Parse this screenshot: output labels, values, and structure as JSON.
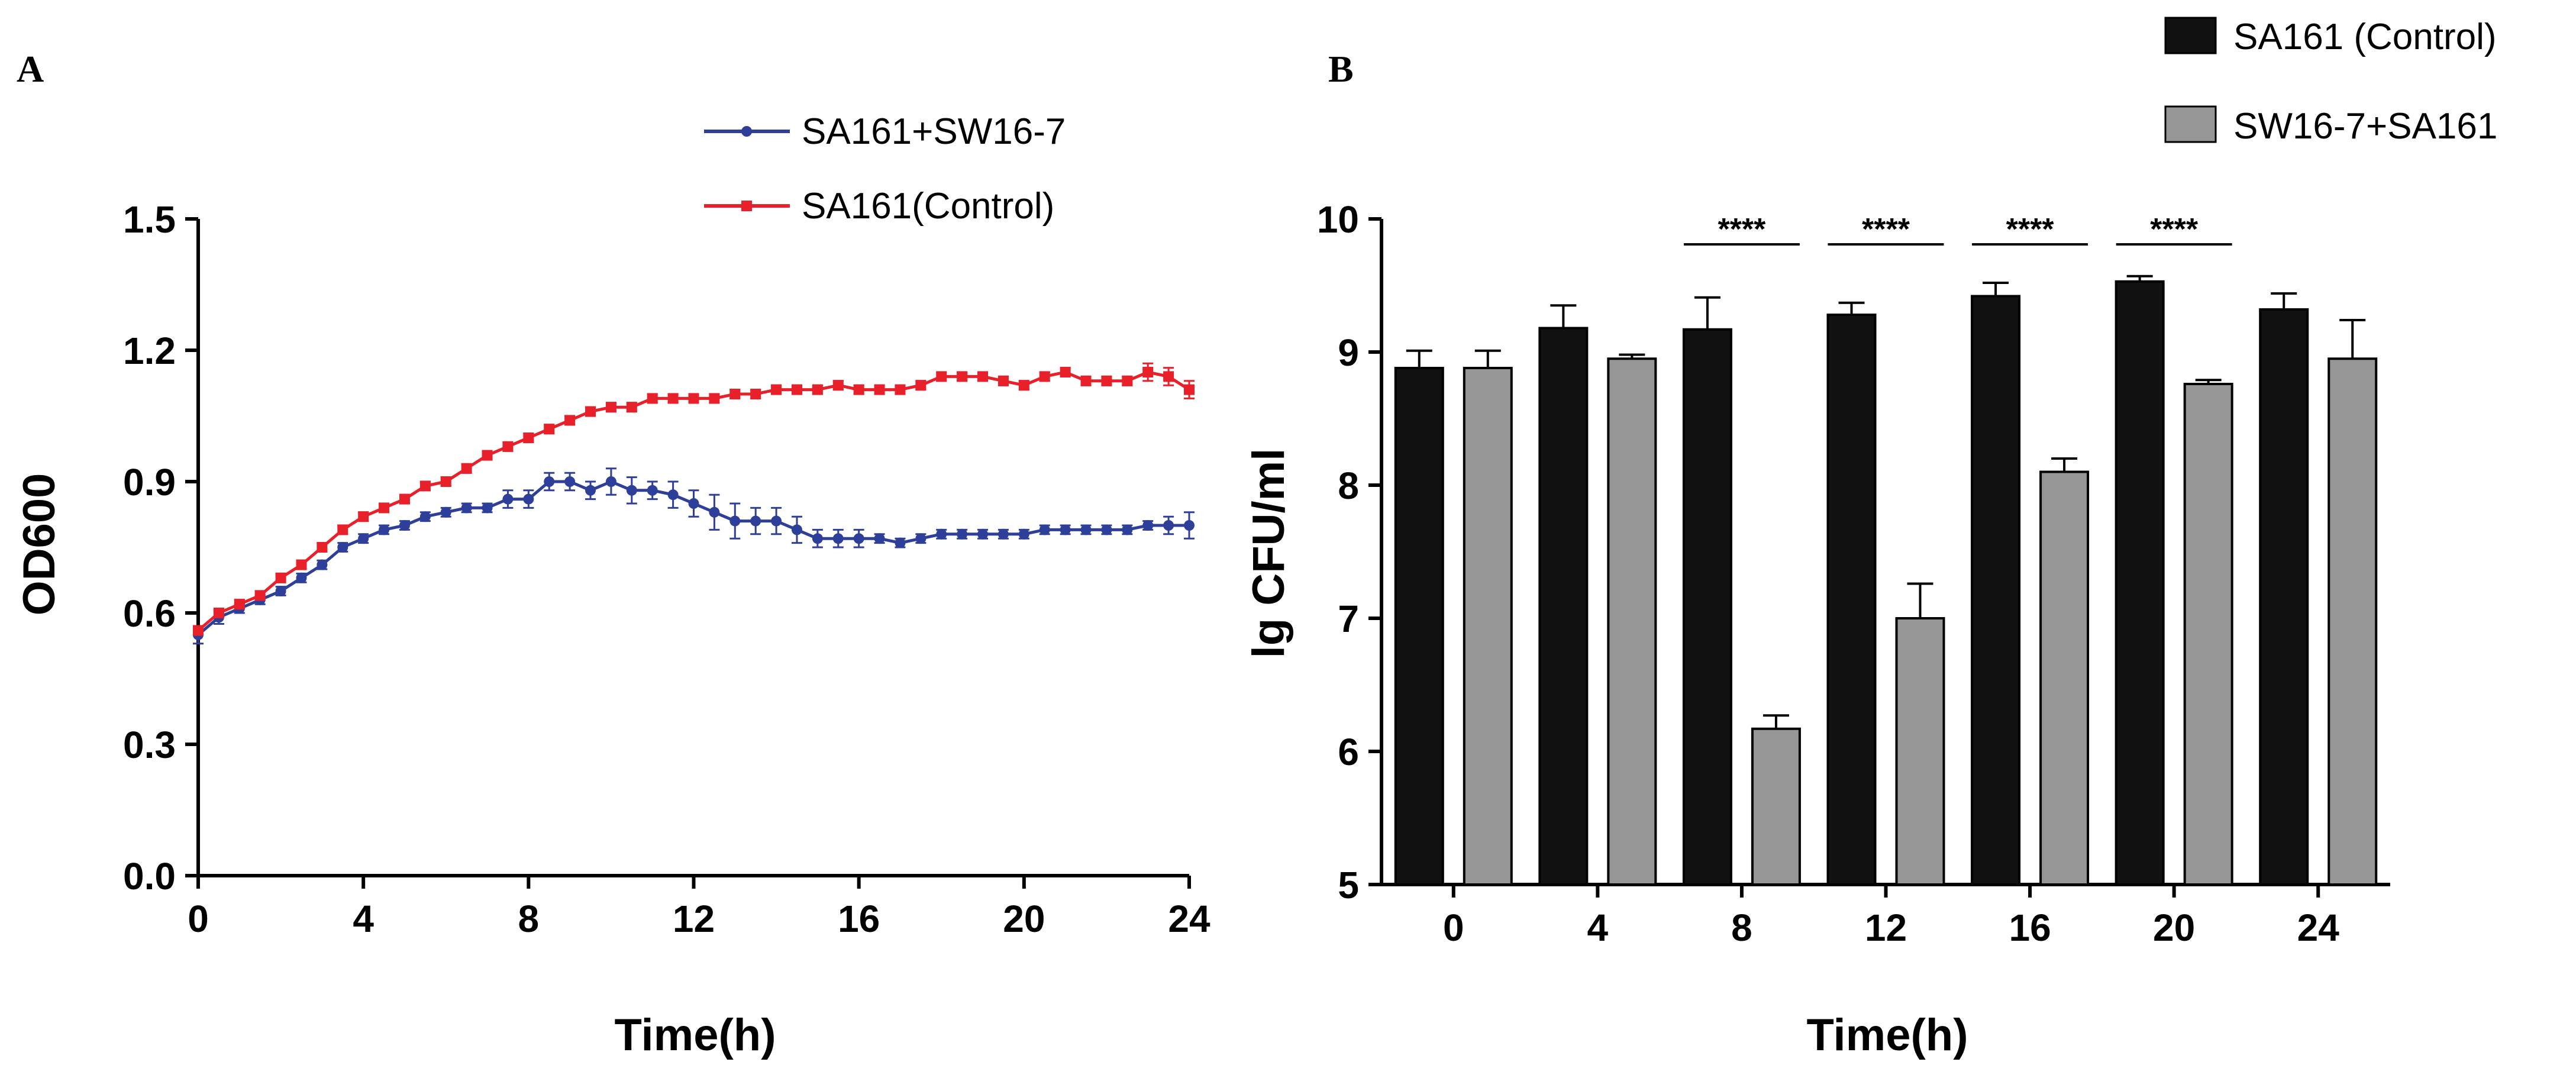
{
  "panels": {
    "a_label": "A",
    "b_label": "B"
  },
  "colors": {
    "blue": "#2e3f9a",
    "red": "#e8202a",
    "black": "#111111",
    "gray": "#969696",
    "axis": "#000000"
  },
  "chart_data": [
    {
      "type": "line",
      "panel": "A",
      "xlabel": "Time(h)",
      "ylabel": "OD600",
      "xlim": [
        0,
        24
      ],
      "ylim": [
        0,
        1.5
      ],
      "xticks": [
        "0",
        "4",
        "8",
        "12",
        "16",
        "20",
        "24"
      ],
      "yticks": [
        "0.0",
        "0.3",
        "0.6",
        "0.9",
        "1.2",
        "1.5"
      ],
      "legend_position": "top-right",
      "x": [
        0,
        0.5,
        1,
        1.5,
        2,
        2.5,
        3,
        3.5,
        4,
        4.5,
        5,
        5.5,
        6,
        6.5,
        7,
        7.5,
        8,
        8.5,
        9,
        9.5,
        10,
        10.5,
        11,
        11.5,
        12,
        12.5,
        13,
        13.5,
        14,
        14.5,
        15,
        15.5,
        16,
        16.5,
        17,
        17.5,
        18,
        18.5,
        19,
        19.5,
        20,
        20.5,
        21,
        21.5,
        22,
        22.5,
        23,
        23.5,
        24
      ],
      "series": [
        {
          "name": "SA161+SW16-7",
          "color": "#2e3f9a",
          "marker": "circle",
          "values": [
            0.55,
            0.59,
            0.61,
            0.63,
            0.65,
            0.68,
            0.71,
            0.75,
            0.77,
            0.79,
            0.8,
            0.82,
            0.83,
            0.84,
            0.84,
            0.86,
            0.86,
            0.9,
            0.9,
            0.88,
            0.9,
            0.88,
            0.88,
            0.87,
            0.85,
            0.83,
            0.81,
            0.81,
            0.81,
            0.79,
            0.77,
            0.77,
            0.77,
            0.77,
            0.76,
            0.77,
            0.78,
            0.78,
            0.78,
            0.78,
            0.78,
            0.79,
            0.79,
            0.79,
            0.79,
            0.79,
            0.8,
            0.8,
            0.8
          ],
          "errors": [
            0.02,
            0.015,
            0.01,
            0.01,
            0.01,
            0.01,
            0.01,
            0.01,
            0.01,
            0.01,
            0.01,
            0.01,
            0.01,
            0.01,
            0.01,
            0.02,
            0.02,
            0.02,
            0.02,
            0.02,
            0.03,
            0.03,
            0.02,
            0.03,
            0.03,
            0.04,
            0.04,
            0.03,
            0.03,
            0.03,
            0.02,
            0.02,
            0.02,
            0.01,
            0.01,
            0.01,
            0.01,
            0.01,
            0.01,
            0.01,
            0.01,
            0.01,
            0.01,
            0.01,
            0.01,
            0.01,
            0.01,
            0.02,
            0.03
          ]
        },
        {
          "name": "SA161(Control)",
          "color": "#e8202a",
          "marker": "square",
          "values": [
            0.56,
            0.6,
            0.62,
            0.64,
            0.68,
            0.71,
            0.75,
            0.79,
            0.82,
            0.84,
            0.86,
            0.89,
            0.9,
            0.93,
            0.96,
            0.98,
            1.0,
            1.02,
            1.04,
            1.06,
            1.07,
            1.07,
            1.09,
            1.09,
            1.09,
            1.09,
            1.1,
            1.1,
            1.11,
            1.11,
            1.11,
            1.12,
            1.11,
            1.11,
            1.11,
            1.12,
            1.14,
            1.14,
            1.14,
            1.13,
            1.12,
            1.14,
            1.15,
            1.13,
            1.13,
            1.13,
            1.15,
            1.14,
            1.11
          ],
          "errors": [
            0.01,
            0.01,
            0.01,
            0.01,
            0.01,
            0.01,
            0.01,
            0.01,
            0.01,
            0.01,
            0.01,
            0.01,
            0.01,
            0.01,
            0.01,
            0.01,
            0.01,
            0.01,
            0.01,
            0.01,
            0.01,
            0.01,
            0.01,
            0.01,
            0.01,
            0.01,
            0.01,
            0.01,
            0.01,
            0.01,
            0.01,
            0.01,
            0.01,
            0.01,
            0.01,
            0.01,
            0.01,
            0.01,
            0.01,
            0.01,
            0.01,
            0.01,
            0.01,
            0.01,
            0.01,
            0.01,
            0.02,
            0.02,
            0.02
          ]
        }
      ]
    },
    {
      "type": "bar",
      "panel": "B",
      "xlabel": "Time(h)",
      "ylabel": "lg CFU/ml",
      "categories": [
        "0",
        "4",
        "8",
        "12",
        "16",
        "20",
        "24"
      ],
      "ylim": [
        5,
        10
      ],
      "yticks": [
        "5",
        "6",
        "7",
        "8",
        "9",
        "10"
      ],
      "legend_position": "top-right",
      "series": [
        {
          "name": "SA161 (Control)",
          "color": "#111111",
          "values": [
            8.88,
            9.18,
            9.17,
            9.28,
            9.42,
            9.53,
            9.32
          ],
          "errors": [
            0.13,
            0.17,
            0.24,
            0.09,
            0.1,
            0.04,
            0.12
          ]
        },
        {
          "name": "SW16-7+SA161",
          "color": "#969696",
          "values": [
            8.88,
            8.95,
            6.17,
            7.0,
            8.1,
            8.76,
            8.95
          ],
          "errors": [
            0.13,
            0.03,
            0.1,
            0.26,
            0.1,
            0.03,
            0.29
          ]
        }
      ],
      "significance": [
        {
          "category": "8",
          "label": "****"
        },
        {
          "category": "12",
          "label": "****"
        },
        {
          "category": "16",
          "label": "****"
        },
        {
          "category": "20",
          "label": "****"
        }
      ]
    }
  ]
}
